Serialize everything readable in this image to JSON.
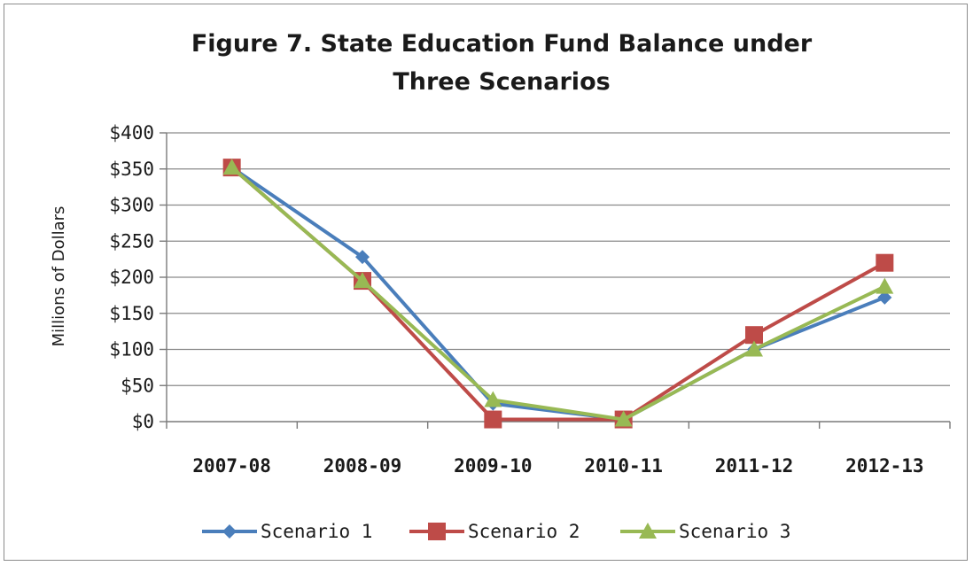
{
  "chart_data": {
    "type": "line",
    "title_lines": [
      "Figure 7.  State Education Fund Balance under",
      "Three Scenarios"
    ],
    "ylabel": "Millions of Dollars",
    "xlabel": "",
    "categories": [
      "2007-08",
      "2008-09",
      "2009-10",
      "2010-11",
      "2011-12",
      "2012-13"
    ],
    "yticks": [
      "$0",
      "$50",
      "$100",
      "$150",
      "$200",
      "$250",
      "$300",
      "$350",
      "$400"
    ],
    "ylim": [
      0,
      400
    ],
    "grid": true,
    "legend_position": "bottom",
    "series": [
      {
        "name": "Scenario 1",
        "color": "#4a7ebb",
        "marker": "diamond",
        "values": [
          352,
          228,
          25,
          3,
          100,
          172
        ]
      },
      {
        "name": "Scenario 2",
        "color": "#be4b48",
        "marker": "square",
        "values": [
          352,
          195,
          3,
          3,
          120,
          220
        ]
      },
      {
        "name": "Scenario 3",
        "color": "#98b954",
        "marker": "triangle",
        "values": [
          352,
          195,
          30,
          3,
          100,
          187
        ]
      }
    ]
  }
}
